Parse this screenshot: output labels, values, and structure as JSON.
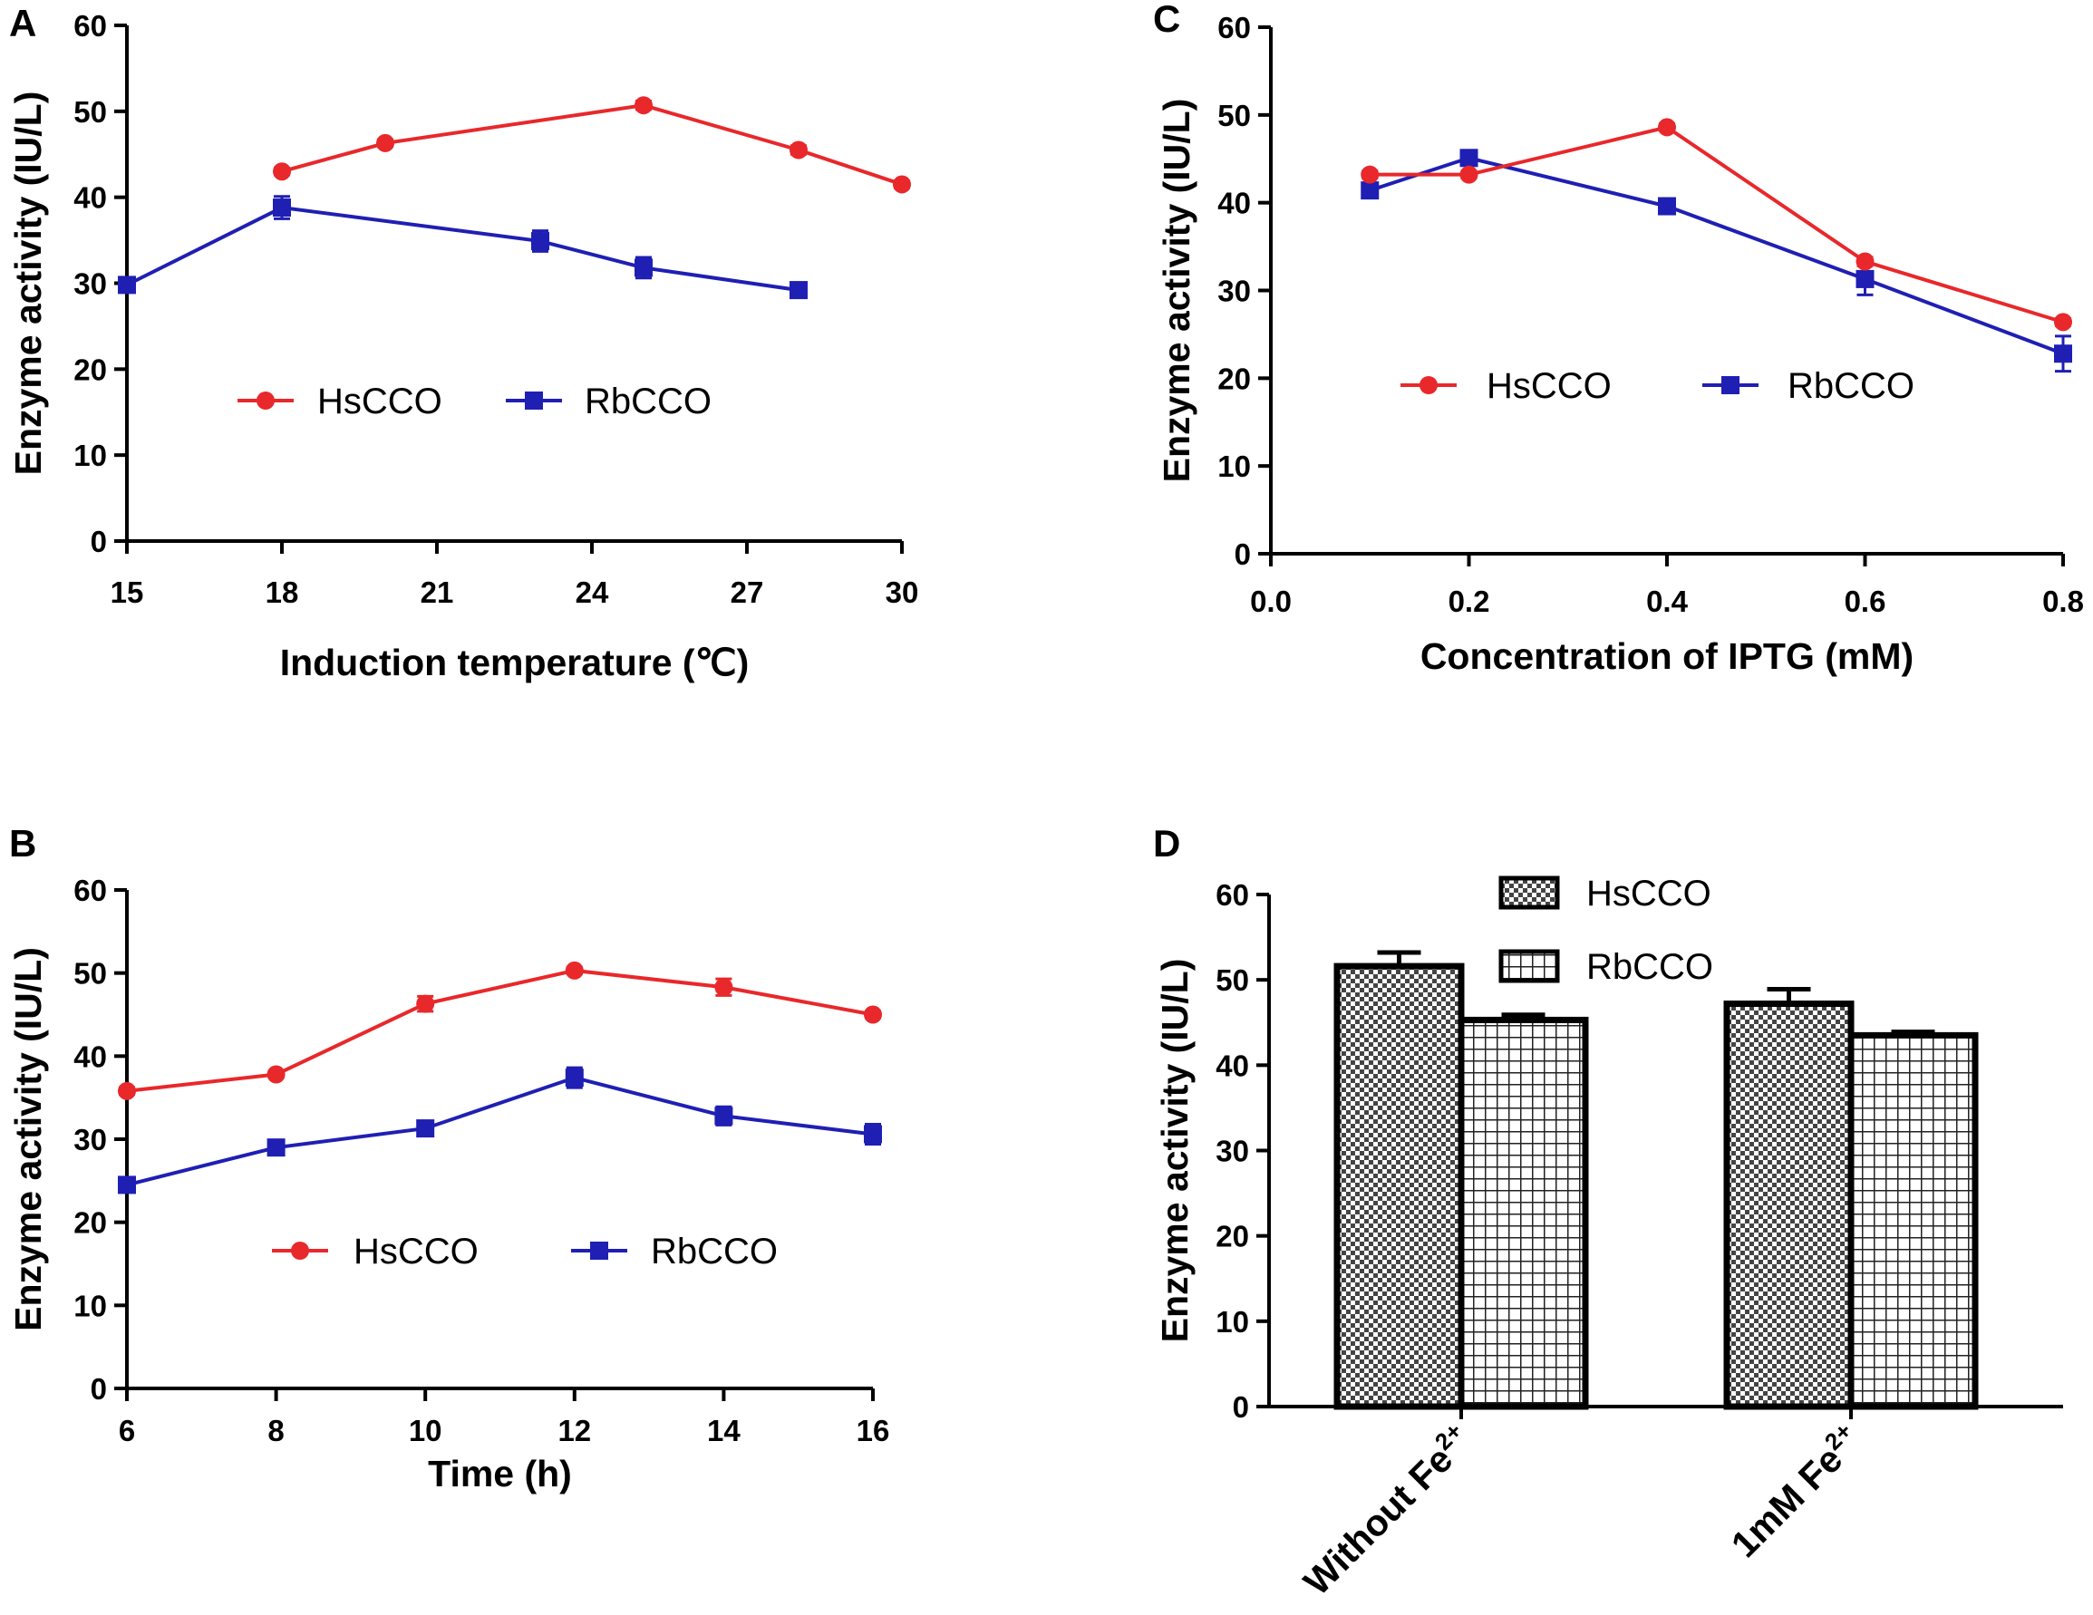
{
  "chart_data": [
    {
      "panel": "A",
      "type": "line",
      "xlabel": "Induction temperature (℃)",
      "ylabel": "Enzyme activity (IU/L)",
      "xlim": [
        15,
        30
      ],
      "xticks": [
        15,
        18,
        21,
        24,
        27,
        30
      ],
      "ylim": [
        0,
        60
      ],
      "yticks": [
        0,
        10,
        20,
        30,
        40,
        50,
        60
      ],
      "legend_position": "middle-left",
      "series": [
        {
          "name": "HsCCO",
          "color": "#e8282b",
          "marker": "circle",
          "x": [
            18,
            20,
            25,
            28,
            30
          ],
          "values": [
            43,
            46.3,
            50.7,
            45.5,
            41.5
          ],
          "err": [
            0.4,
            0.4,
            0.5,
            0.5,
            0.4
          ]
        },
        {
          "name": "RbCCO",
          "color": "#1f1fb4",
          "marker": "square",
          "x": [
            15,
            18,
            23,
            25,
            28
          ],
          "values": [
            29.8,
            38.8,
            34.9,
            31.8,
            29.2
          ],
          "err": [
            0.8,
            1.3,
            1.2,
            1.2,
            0.6
          ]
        }
      ]
    },
    {
      "panel": "B",
      "type": "line",
      "xlabel": "Time (h)",
      "ylabel": "Enzyme activity (IU/L)",
      "xlim": [
        6,
        16
      ],
      "xticks": [
        6,
        8,
        10,
        12,
        14,
        16
      ],
      "ylim": [
        0,
        60
      ],
      "yticks": [
        0,
        10,
        20,
        30,
        40,
        50,
        60
      ],
      "legend_position": "lower-center",
      "series": [
        {
          "name": "HsCCO",
          "color": "#e8282b",
          "marker": "circle",
          "x": [
            6,
            8,
            10,
            12,
            14,
            16
          ],
          "values": [
            35.8,
            37.8,
            46.3,
            50.3,
            48.3,
            45
          ],
          "err": [
            0.4,
            0.4,
            0.9,
            0.4,
            1.0,
            0.4
          ]
        },
        {
          "name": "RbCCO",
          "color": "#1f1fb4",
          "marker": "square",
          "x": [
            6,
            8,
            10,
            12,
            14,
            16
          ],
          "values": [
            24.5,
            29,
            31.3,
            37.4,
            32.8,
            30.6
          ],
          "err": [
            0.5,
            0.5,
            0.7,
            1.2,
            1.1,
            1.2
          ]
        }
      ]
    },
    {
      "panel": "C",
      "type": "line",
      "xlabel": "Concentration of IPTG (mM)",
      "ylabel": "Enzyme activity (IU/L)",
      "xlim": [
        0,
        0.8
      ],
      "xticks": [
        0.0,
        0.2,
        0.4,
        0.6,
        0.8
      ],
      "xtick_labels": [
        "0.0",
        "0.2",
        "0.4",
        "0.6",
        "0.8"
      ],
      "ylim": [
        0,
        60
      ],
      "yticks": [
        0,
        10,
        20,
        30,
        40,
        50,
        60
      ],
      "legend_position": "middle-left",
      "series": [
        {
          "name": "HsCCO",
          "color": "#e8282b",
          "marker": "circle",
          "x": [
            0.1,
            0.2,
            0.4,
            0.6,
            0.8
          ],
          "values": [
            43.2,
            43.2,
            48.6,
            33.3,
            26.4
          ],
          "err": [
            0.4,
            0.4,
            0.4,
            0.5,
            0.4
          ]
        },
        {
          "name": "RbCCO",
          "color": "#1f1fb4",
          "marker": "square",
          "x": [
            0.1,
            0.2,
            0.4,
            0.6,
            0.8
          ],
          "values": [
            41.4,
            45.1,
            39.6,
            31.3,
            22.8
          ],
          "err": [
            0.8,
            0.8,
            0.6,
            1.8,
            2.0
          ]
        }
      ]
    },
    {
      "panel": "D",
      "type": "bar",
      "ylabel": "Enzyme activity (IU/L)",
      "ylim": [
        0,
        60
      ],
      "yticks": [
        0,
        10,
        20,
        30,
        40,
        50,
        60
      ],
      "categories": [
        {
          "base": "Without Fe",
          "sup": "2+"
        },
        {
          "base": "1mM Fe",
          "sup": "2+"
        }
      ],
      "legend_position": "top-center",
      "series": [
        {
          "name": "HsCCO",
          "pattern": "checkerboard",
          "values": [
            51.6,
            47.2
          ],
          "err": [
            1.6,
            1.7
          ]
        },
        {
          "name": "RbCCO",
          "pattern": "grid",
          "values": [
            45.3,
            43.5
          ],
          "err": [
            0.6,
            0.4
          ]
        }
      ]
    }
  ]
}
